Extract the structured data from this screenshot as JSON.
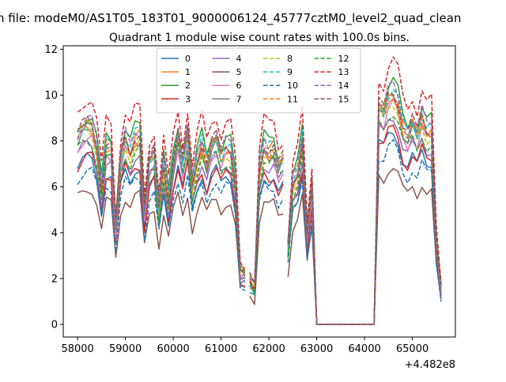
{
  "chart_data": {
    "type": "line",
    "suptitle": "n file: modeM0/AS1T05_183T01_9000006124_45777cztM0_level2_quad_clean",
    "title": "Quadrant 1 module wise count rates with 100.0s bins.",
    "xlabel": "",
    "ylabel": "",
    "x_offset_label": "+4.482e8",
    "xlim": [
      57700,
      65900
    ],
    "ylim": [
      -0.55,
      12.15
    ],
    "x_ticks": [
      58000,
      59000,
      60000,
      61000,
      62000,
      63000,
      64000,
      65000
    ],
    "y_ticks": [
      0,
      2,
      4,
      6,
      8,
      10,
      12
    ],
    "legend": {
      "position": "top-center",
      "columns": 4
    },
    "segments": [
      {
        "x_start": 58000,
        "x_end": 61500,
        "step": 100
      },
      {
        "x_start": 61600,
        "x_end": 61800,
        "step": 100
      },
      {
        "x_start": 61800,
        "x_end": 62300,
        "step": 100
      },
      {
        "x_start": 62400,
        "x_end": 65600,
        "step": 100
      }
    ],
    "series": [
      {
        "name": "0",
        "color": "#1f77b4",
        "style": "solid",
        "scale": 0.73
      },
      {
        "name": "1",
        "color": "#ff7f0e",
        "style": "solid",
        "scale": 0.88
      },
      {
        "name": "2",
        "color": "#2ca02c",
        "style": "solid",
        "scale": 0.92
      },
      {
        "name": "3",
        "color": "#d62728",
        "style": "solid",
        "scale": 0.74
      },
      {
        "name": "4",
        "color": "#9467bd",
        "style": "solid",
        "scale": 0.79
      },
      {
        "name": "5",
        "color": "#8c564b",
        "style": "solid",
        "scale": 0.6
      },
      {
        "name": "6",
        "color": "#e377c2",
        "style": "solid",
        "scale": 0.83
      },
      {
        "name": "7",
        "color": "#7f7f7f",
        "style": "solid",
        "scale": 0.86
      },
      {
        "name": "8",
        "color": "#bcbd22",
        "style": "dashed",
        "scale": 0.85
      },
      {
        "name": "9",
        "color": "#17becf",
        "style": "dashed",
        "scale": 0.89
      },
      {
        "name": "10",
        "color": "#1f77b4",
        "style": "dashed",
        "scale": 0.68
      },
      {
        "name": "11",
        "color": "#ff7f0e",
        "style": "dashed",
        "scale": 0.87
      },
      {
        "name": "12",
        "color": "#2ca02c",
        "style": "dashed",
        "scale": 0.81
      },
      {
        "name": "13",
        "color": "#d62728",
        "style": "dashed",
        "scale": 1.0
      },
      {
        "name": "14",
        "color": "#9467bd",
        "style": "dashed",
        "scale": 0.9
      },
      {
        "name": "15",
        "color": "#8c564b",
        "style": "dashed",
        "scale": 0.89
      }
    ],
    "reference_profile": {
      "x": [
        58000,
        58100,
        58200,
        58300,
        58400,
        58500,
        58600,
        58700,
        58800,
        58900,
        59000,
        59100,
        59200,
        59300,
        59400,
        59500,
        59600,
        59700,
        59800,
        59900,
        60000,
        60100,
        60200,
        60300,
        60400,
        60500,
        60600,
        60700,
        60800,
        60900,
        61000,
        61100,
        61200,
        61300,
        61400,
        61500,
        61600,
        61700,
        61800,
        61900,
        62000,
        62100,
        62200,
        62300,
        62400,
        62500,
        62600,
        62700,
        62800,
        62900,
        63000,
        63100,
        64100,
        64200,
        64300,
        64400,
        64500,
        64600,
        64700,
        64800,
        64900,
        65000,
        65100,
        65200,
        65300,
        65400,
        65500,
        65600
      ],
      "y": [
        9.3,
        9.7,
        9.9,
        9.8,
        8.8,
        6.8,
        8.9,
        8.8,
        4.9,
        8.2,
        9.2,
        8.6,
        9.3,
        9.4,
        5.7,
        8.1,
        8.5,
        5.8,
        8.0,
        6.2,
        8.2,
        9.4,
        8.0,
        9.5,
        6.9,
        8.2,
        9.0,
        8.0,
        8.9,
        9.2,
        8.3,
        8.8,
        8.7,
        7.0,
        2.6,
        2.5,
        2.2,
        1.8,
        7.6,
        8.9,
        8.6,
        8.8,
        7.8,
        8.2,
        3.8,
        7.0,
        7.6,
        9.2,
        4.4,
        7.0,
        0.0,
        0.0,
        0.0,
        0.0,
        10.8,
        10.5,
        11.3,
        11.5,
        11.0,
        9.8,
        9.4,
        10.0,
        9.4,
        10.3,
        9.6,
        9.7,
        4.1,
        1.8
      ]
    }
  }
}
